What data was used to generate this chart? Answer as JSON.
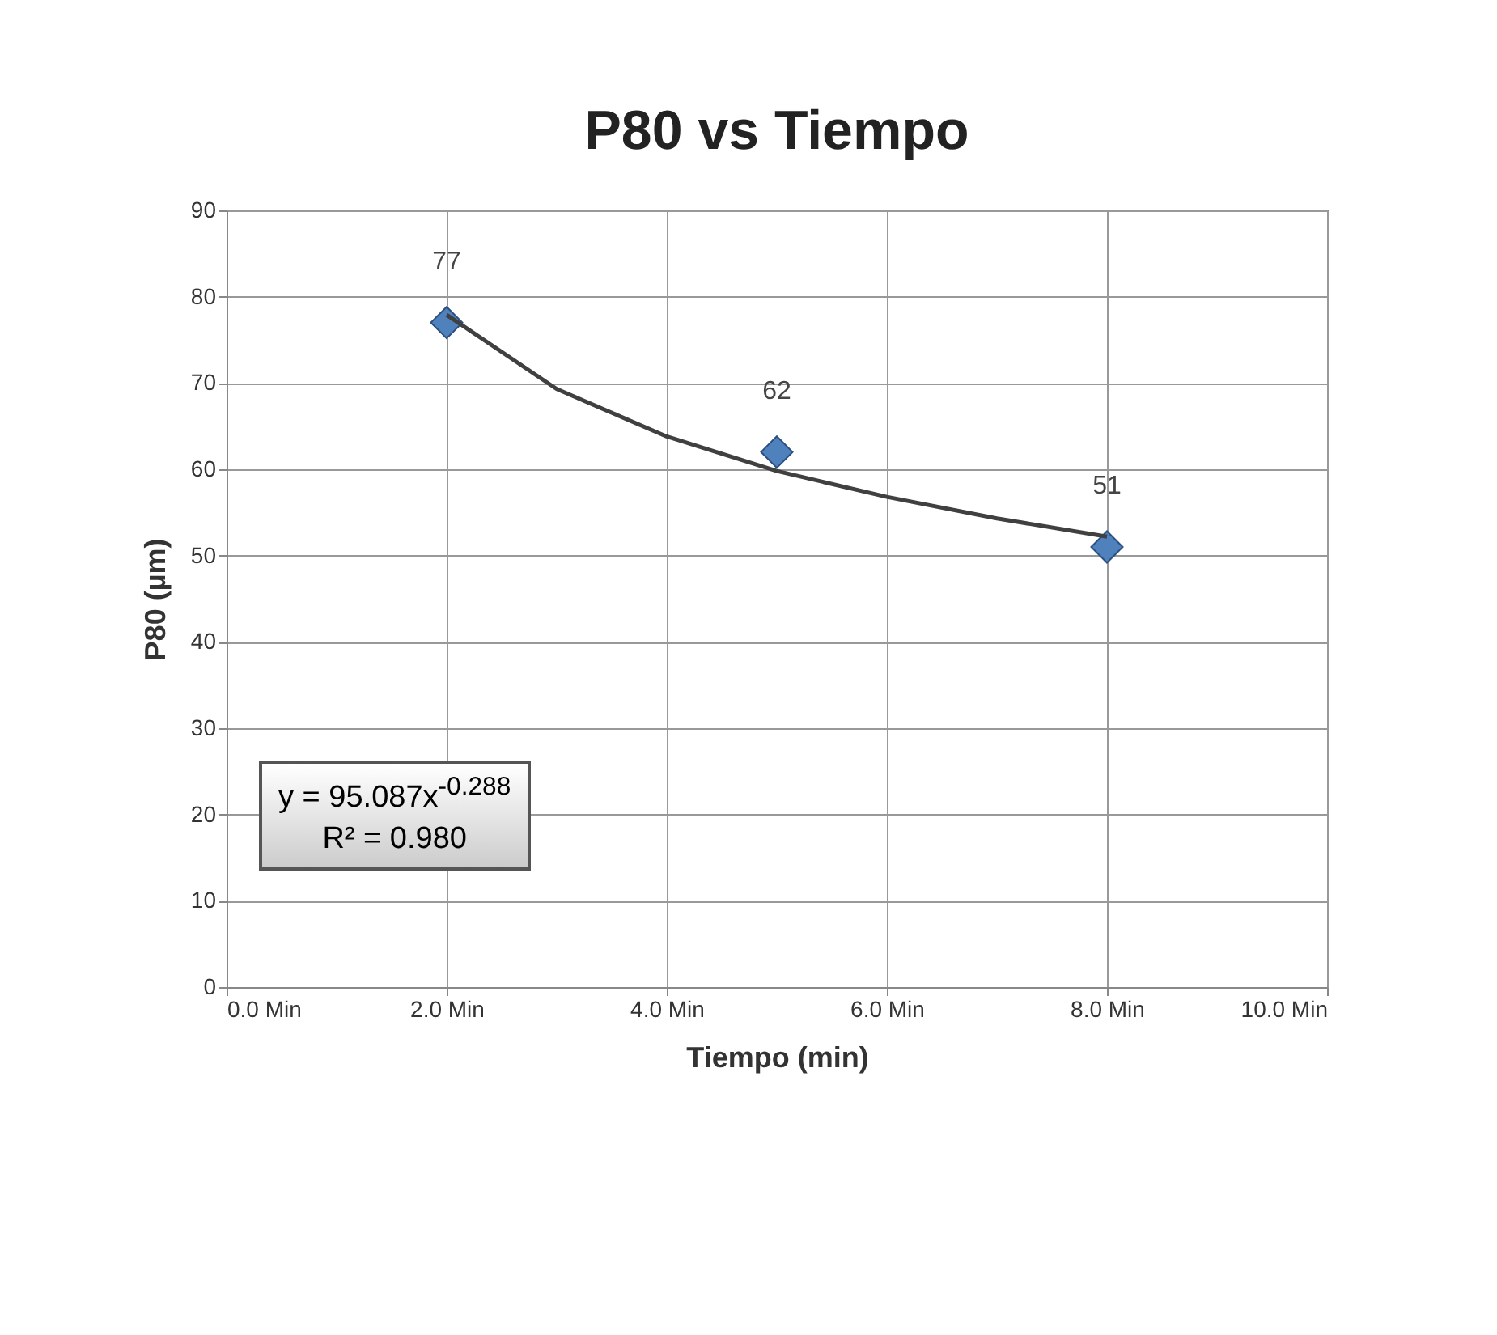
{
  "chart_data": {
    "type": "scatter",
    "title": "P80 vs Tiempo",
    "xlabel": "Tiempo (min)",
    "ylabel": "P80 (µm)",
    "x": [
      2,
      5,
      8
    ],
    "series": [
      {
        "type": "scatter",
        "color": "#4f81bd",
        "values": [
          77,
          62,
          51
        ],
        "value_labels": [
          "77",
          "62",
          "51"
        ]
      },
      {
        "type": "line",
        "color": "#404040",
        "marker": "none",
        "x": [
          2,
          3,
          4,
          5,
          6,
          7,
          8
        ],
        "values": [
          77.9,
          69.3,
          63.8,
          59.8,
          56.8,
          54.3,
          52.2
        ]
      }
    ],
    "xlim": [
      0,
      10
    ],
    "xticks": [
      {
        "value": 0,
        "label": "0.0 Min"
      },
      {
        "value": 2,
        "label": "2.0 Min"
      },
      {
        "value": 4,
        "label": "4.0 Min"
      },
      {
        "value": 6,
        "label": "6.0 Min"
      },
      {
        "value": 8,
        "label": "8.0 Min"
      },
      {
        "value": 10,
        "label": "10.0 Min"
      }
    ],
    "ylim": [
      0,
      90
    ],
    "yticks": [
      0,
      10,
      20,
      30,
      40,
      50,
      60,
      70,
      80,
      90
    ],
    "grid": true,
    "marker": "diamond",
    "annotations": [
      "y = 95.087x$^{-0.288}$",
      "R² = 0.980"
    ]
  }
}
